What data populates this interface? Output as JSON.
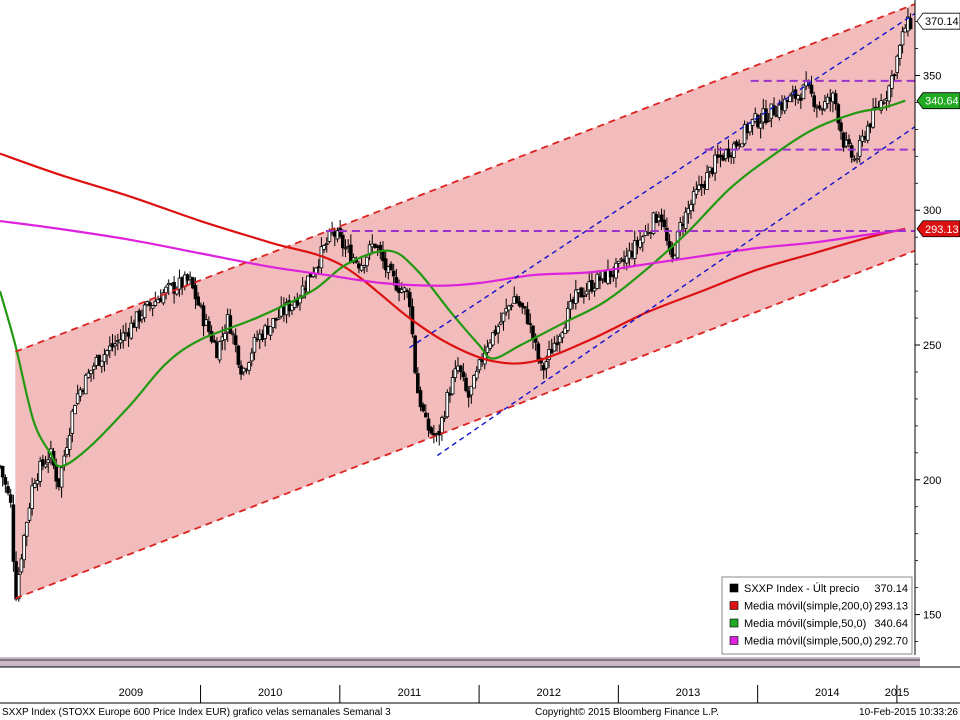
{
  "chart_data": {
    "type": "candlestick",
    "title": "SXXP Index (STOXX Europe 600 Price Index EUR) grafico velas semanales  Semanal 3",
    "copyright": "Copyright© 2015 Bloomberg Finance L.P.",
    "timestamp": "10-Feb-2015 10:33:26",
    "y_axis": {
      "position": "right",
      "range": [
        135,
        378
      ],
      "ticks": [
        150,
        200,
        250,
        300,
        350
      ],
      "tick_labels": [
        "150",
        "200",
        "250",
        "300",
        "350"
      ]
    },
    "x_axis": {
      "range": [
        2008.56,
        2015.13
      ],
      "year_labels": [
        {
          "label": "2009",
          "x": 2009.0
        },
        {
          "label": "2010",
          "x": 2010.0
        },
        {
          "label": "2011",
          "x": 2011.0
        },
        {
          "label": "2012",
          "x": 2012.0
        },
        {
          "label": "2013",
          "x": 2013.0
        },
        {
          "label": "2014",
          "x": 2014.0
        },
        {
          "label": "2015",
          "x": 2015.0
        }
      ]
    },
    "price_anchors": [
      [
        2008.56,
        205
      ],
      [
        2008.64,
        190
      ],
      [
        2008.67,
        156
      ],
      [
        2008.72,
        175
      ],
      [
        2008.8,
        200
      ],
      [
        2008.92,
        210
      ],
      [
        2008.98,
        198
      ],
      [
        2009.1,
        230
      ],
      [
        2009.25,
        244
      ],
      [
        2009.42,
        252
      ],
      [
        2009.58,
        262
      ],
      [
        2009.75,
        270
      ],
      [
        2009.92,
        274
      ],
      [
        2010.02,
        260
      ],
      [
        2010.12,
        248
      ],
      [
        2010.2,
        260
      ],
      [
        2010.3,
        240
      ],
      [
        2010.4,
        252
      ],
      [
        2010.55,
        260
      ],
      [
        2010.7,
        268
      ],
      [
        2010.85,
        282
      ],
      [
        2010.95,
        292
      ],
      [
        2011.05,
        285
      ],
      [
        2011.15,
        280
      ],
      [
        2011.25,
        288
      ],
      [
        2011.35,
        276
      ],
      [
        2011.42,
        272
      ],
      [
        2011.5,
        268
      ],
      [
        2011.55,
        235
      ],
      [
        2011.62,
        220
      ],
      [
        2011.7,
        215
      ],
      [
        2011.78,
        232
      ],
      [
        2011.85,
        242
      ],
      [
        2011.92,
        230
      ],
      [
        2011.98,
        238
      ],
      [
        2012.05,
        250
      ],
      [
        2012.15,
        258
      ],
      [
        2012.25,
        268
      ],
      [
        2012.35,
        260
      ],
      [
        2012.45,
        240
      ],
      [
        2012.55,
        252
      ],
      [
        2012.7,
        268
      ],
      [
        2012.85,
        274
      ],
      [
        2013.0,
        278
      ],
      [
        2013.1,
        285
      ],
      [
        2013.2,
        292
      ],
      [
        2013.3,
        300
      ],
      [
        2013.38,
        280
      ],
      [
        2013.45,
        295
      ],
      [
        2013.55,
        305
      ],
      [
        2013.7,
        318
      ],
      [
        2013.85,
        325
      ],
      [
        2013.95,
        332
      ],
      [
        2014.05,
        335
      ],
      [
        2014.2,
        340
      ],
      [
        2014.35,
        345
      ],
      [
        2014.45,
        338
      ],
      [
        2014.55,
        342
      ],
      [
        2014.62,
        325
      ],
      [
        2014.7,
        318
      ],
      [
        2014.78,
        330
      ],
      [
        2014.86,
        338
      ],
      [
        2014.94,
        345
      ],
      [
        2015.0,
        356
      ],
      [
        2015.06,
        368
      ],
      [
        2015.11,
        370
      ]
    ],
    "moving_averages": [
      {
        "name": "Media móvil(simple,200,0)",
        "last": 293.13,
        "color": "#dd1111",
        "points": [
          [
            2008.56,
            321
          ],
          [
            2009.0,
            313
          ],
          [
            2009.5,
            305
          ],
          [
            2010.0,
            296
          ],
          [
            2010.5,
            288
          ],
          [
            2011.0,
            280
          ],
          [
            2011.5,
            260
          ],
          [
            2011.8,
            250
          ],
          [
            2012.1,
            244
          ],
          [
            2012.4,
            244
          ],
          [
            2012.8,
            252
          ],
          [
            2013.2,
            262
          ],
          [
            2013.6,
            270
          ],
          [
            2014.0,
            278
          ],
          [
            2014.4,
            284
          ],
          [
            2014.8,
            290
          ],
          [
            2015.06,
            293.13
          ]
        ]
      },
      {
        "name": "Media móvil(simple,50,0)",
        "last": 340.64,
        "color": "#229911",
        "points": [
          [
            2008.56,
            270
          ],
          [
            2008.67,
            250
          ],
          [
            2008.8,
            222
          ],
          [
            2008.92,
            210
          ],
          [
            2009.0,
            205
          ],
          [
            2009.2,
            212
          ],
          [
            2009.5,
            228
          ],
          [
            2009.75,
            243
          ],
          [
            2010.0,
            252
          ],
          [
            2010.4,
            260
          ],
          [
            2010.8,
            270
          ],
          [
            2011.05,
            280
          ],
          [
            2011.35,
            285
          ],
          [
            2011.55,
            278
          ],
          [
            2011.8,
            262
          ],
          [
            2012.0,
            250
          ],
          [
            2012.1,
            245
          ],
          [
            2012.3,
            250
          ],
          [
            2012.6,
            258
          ],
          [
            2012.9,
            266
          ],
          [
            2013.2,
            278
          ],
          [
            2013.5,
            292
          ],
          [
            2013.8,
            308
          ],
          [
            2014.1,
            320
          ],
          [
            2014.4,
            330
          ],
          [
            2014.7,
            336
          ],
          [
            2014.9,
            338
          ],
          [
            2015.06,
            340.64
          ]
        ]
      },
      {
        "name": "Media móvil(simple,500,0)",
        "last": 292.7,
        "color": "#dd22dd",
        "points": [
          [
            2008.56,
            296
          ],
          [
            2009.0,
            293
          ],
          [
            2009.5,
            289
          ],
          [
            2010.0,
            284
          ],
          [
            2010.5,
            279
          ],
          [
            2010.9,
            276
          ],
          [
            2011.3,
            273
          ],
          [
            2011.7,
            272
          ],
          [
            2012.0,
            273
          ],
          [
            2012.4,
            276
          ],
          [
            2012.8,
            277
          ],
          [
            2013.2,
            280
          ],
          [
            2013.6,
            283
          ],
          [
            2014.0,
            286
          ],
          [
            2014.4,
            288
          ],
          [
            2014.8,
            291
          ],
          [
            2015.06,
            292.7
          ]
        ]
      }
    ],
    "channel_lines": [
      {
        "style": "red-dashed",
        "points": [
          [
            2008.67,
            247.5
          ],
          [
            2015.13,
            376.5
          ]
        ]
      },
      {
        "style": "red-dashed",
        "points": [
          [
            2008.67,
            156
          ],
          [
            2015.13,
            285
          ]
        ]
      },
      {
        "style": "blue-dashed",
        "points": [
          [
            2011.5,
            249
          ],
          [
            2015.13,
            373
          ]
        ]
      },
      {
        "style": "blue-dashed",
        "points": [
          [
            2011.7,
            209
          ],
          [
            2015.13,
            331
          ]
        ]
      }
    ],
    "horizontal_levels": [
      {
        "value": 292.3,
        "from": 2010.9
      },
      {
        "value": 348,
        "from": 2013.95
      },
      {
        "value": 322.5,
        "from": 2013.62
      }
    ],
    "price_tags": [
      {
        "value": 370.14,
        "label": "370.14",
        "bg": "#ffffff",
        "fg": "#000000"
      },
      {
        "value": 340.64,
        "label": "340.64",
        "bg": "#22aa22",
        "fg": "#ffffff"
      },
      {
        "value": 293.13,
        "label": "293.13",
        "bg": "#dd1111",
        "fg": "#ffffff"
      }
    ],
    "legend": {
      "placement": "bottom-right",
      "entries": [
        {
          "name": "SXXP Index - Últ precio",
          "value": "370.14",
          "color": "#000000"
        },
        {
          "name": "Media móvil(simple,200,0)",
          "value": "293.13",
          "color": "#dd1111"
        },
        {
          "name": "Media móvil(simple,50,0)",
          "value": "340.64",
          "color": "#22aa22"
        },
        {
          "name": "Media móvil(simple,500,0)",
          "value": "292.70",
          "color": "#dd22dd"
        }
      ]
    },
    "colors": {
      "channel_fill": "#f2bcbc",
      "candle": "#000000",
      "red_dash": "#dd2222",
      "blue_dash": "#1111cc",
      "purple_dash": "#9933cc"
    }
  }
}
